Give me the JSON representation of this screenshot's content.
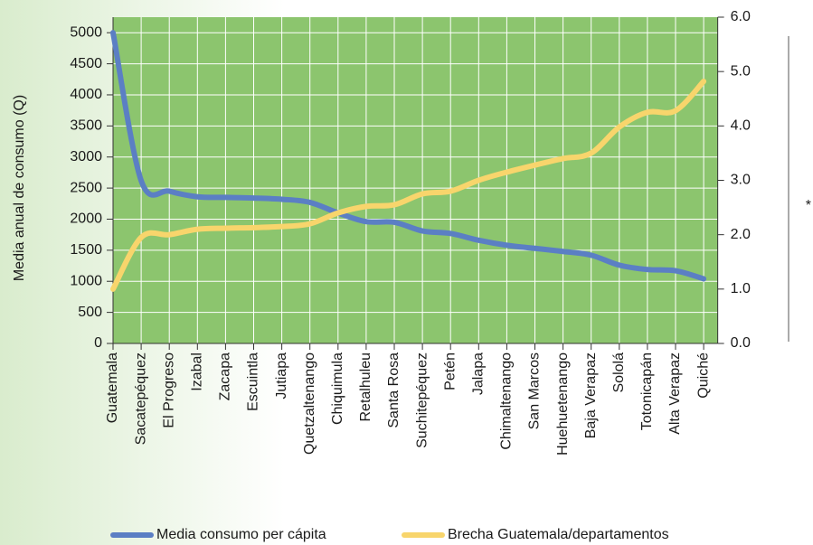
{
  "chart_data": {
    "type": "line",
    "y_label": "Media anual de consumo (Q)",
    "y2_label": "*",
    "categories": [
      "Guatemala",
      "Sacatepéquez",
      "El Progreso",
      "Izabal",
      "Zacapa",
      "Escuintla",
      "Jutiapa",
      "Quetzaltenango",
      "Chiquimula",
      "Retalhuleu",
      "Santa Rosa",
      "Suchitepéquez",
      "Petén",
      "Jalapa",
      "Chimaltenango",
      "San Marcos",
      "Huehuetenango",
      "Baja Verapaz",
      "Sololá",
      "Totonicapán",
      "Alta Verapaz",
      "Quiché"
    ],
    "series": [
      {
        "name": "Media consumo per cápita",
        "color": "#5b7fc4",
        "values": [
          5000,
          2620,
          2450,
          2360,
          2350,
          2340,
          2320,
          2270,
          2100,
          1960,
          1950,
          1810,
          1770,
          1660,
          1580,
          1530,
          1480,
          1420,
          1260,
          1190,
          1170,
          1040
        ]
      },
      {
        "name": "Brecha Guatemala/departamentos",
        "color": "#f8d56c",
        "axis": "y2",
        "values": [
          1.0,
          1.95,
          2.0,
          2.1,
          2.12,
          2.13,
          2.15,
          2.2,
          2.4,
          2.52,
          2.55,
          2.75,
          2.8,
          3.0,
          3.15,
          3.28,
          3.4,
          3.5,
          3.98,
          4.25,
          4.28,
          4.82
        ]
      }
    ],
    "ylim": [
      0,
      5250
    ],
    "yticks": [
      0,
      500,
      1000,
      1500,
      2000,
      2500,
      3000,
      3500,
      4000,
      4500,
      5000
    ],
    "y2lim": [
      0,
      6
    ],
    "y2ticks": [
      {
        "value": 0,
        "label": "0.0"
      },
      {
        "value": 1,
        "label": "1.0"
      },
      {
        "value": 2,
        "label": "2.0"
      },
      {
        "value": 3,
        "label": "3.0"
      },
      {
        "value": 4,
        "label": "4.0"
      },
      {
        "value": 5,
        "label": "5.0"
      },
      {
        "value": 6,
        "label": "6.0"
      }
    ],
    "plot_color": "#8cc56e",
    "grid": true
  }
}
